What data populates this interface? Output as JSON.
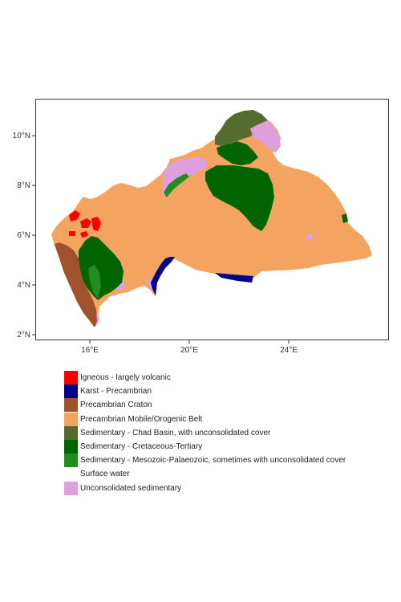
{
  "map": {
    "x_ticks": [
      "16°E",
      "20°E",
      "24°E"
    ],
    "y_ticks": [
      "10°N",
      "8°N",
      "6°N",
      "4°N",
      "2°N"
    ]
  },
  "colors": {
    "igneous": "#ff0000",
    "karst": "#00008b",
    "craton": "#a0522d",
    "mobile_belt": "#f4a460",
    "chad_basin": "#556b2f",
    "cretaceous_tertiary": "#006400",
    "mesozoic_palaeozoic": "#228b22",
    "surface_water": "#ffffff",
    "unconsolidated": "#dda0dd"
  },
  "legend": [
    {
      "label": "Igneous - largely volcanic",
      "color": "#ff0000"
    },
    {
      "label": "Karst - Precambrian",
      "color": "#00008b"
    },
    {
      "label": "Precambrian Craton",
      "color": "#a0522d"
    },
    {
      "label": "Precambrian Mobile/Orogenic Belt",
      "color": "#f4a460"
    },
    {
      "label": "Sedimentary - Chad Basin, with unconsolidated cover",
      "color": "#556b2f"
    },
    {
      "label": "Sedimentary - Cretaceous-Tertiary",
      "color": "#006400"
    },
    {
      "label": "Sedimentary - Mesozoic-Palaeozoic, sometimes with unconsolidated cover",
      "color": "#228b22"
    },
    {
      "label": "Surface water",
      "color": "#ffffff"
    },
    {
      "label": "Unconsolidated sedimentary",
      "color": "#dda0dd"
    }
  ]
}
